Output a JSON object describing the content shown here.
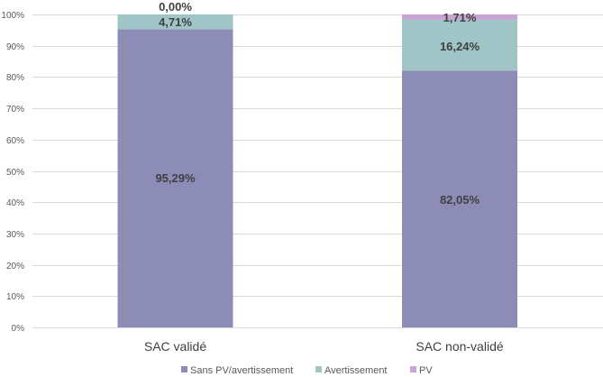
{
  "chart_data": {
    "type": "bar",
    "stacked": true,
    "percent_stacked": true,
    "categories": [
      "SAC validé",
      "SAC non-validé"
    ],
    "series": [
      {
        "name": "Sans PV/avertissement",
        "values": [
          95.29,
          82.05
        ],
        "labels": [
          "95,29%",
          "82,05%"
        ],
        "color": "#8c8cb6"
      },
      {
        "name": "Avertissement",
        "values": [
          4.71,
          16.24
        ],
        "labels": [
          "4,71%",
          "16,24%"
        ],
        "color": "#9fc5c7"
      },
      {
        "name": "PV",
        "values": [
          0.0,
          1.71
        ],
        "labels": [
          "0,00%",
          "1,71%"
        ],
        "color": "#c9a4d2"
      }
    ],
    "y_ticks": [
      "0%",
      "10%",
      "20%",
      "30%",
      "40%",
      "50%",
      "60%",
      "70%",
      "80%",
      "90%",
      "100%"
    ],
    "ylim": [
      0,
      100
    ],
    "grid": true,
    "legend_position": "bottom",
    "title": "",
    "xlabel": "",
    "ylabel": ""
  }
}
